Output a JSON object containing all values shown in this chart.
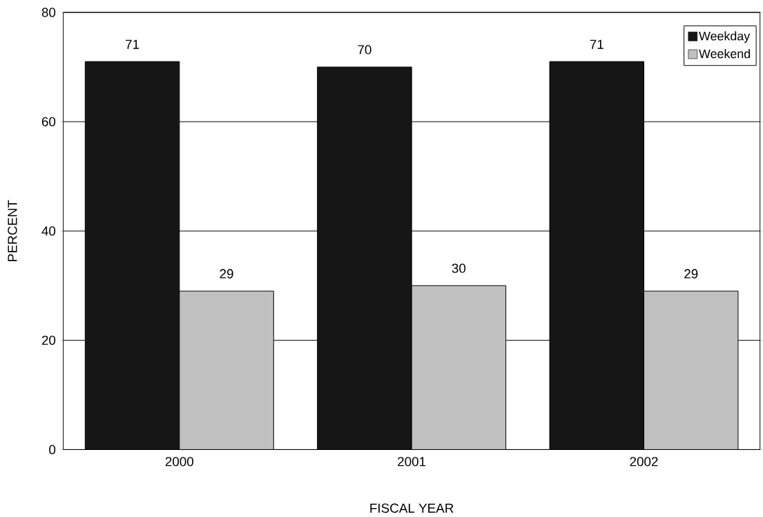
{
  "chart_data": {
    "type": "bar",
    "xlabel": "FISCAL YEAR",
    "ylabel": "PERCENT",
    "categories": [
      "2000",
      "2001",
      "2002"
    ],
    "series": [
      {
        "name": "Weekday",
        "color": "#161616",
        "values": [
          71,
          70,
          71
        ]
      },
      {
        "name": "Weekend",
        "color": "#c0c0c0",
        "values": [
          29,
          30,
          29
        ]
      }
    ],
    "ylim": [
      0,
      80
    ],
    "yticks": [
      0,
      20,
      40,
      60,
      80
    ],
    "grid": "y",
    "legend": "top right",
    "data_labels": true
  }
}
